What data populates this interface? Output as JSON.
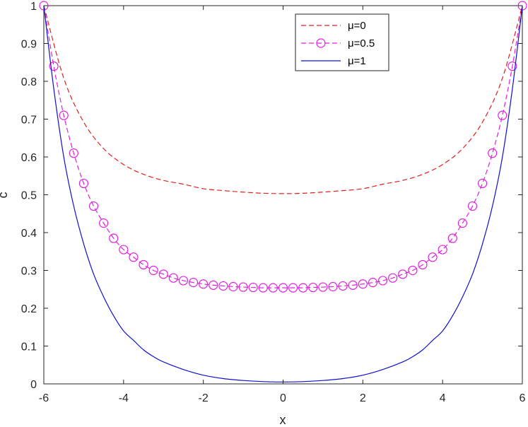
{
  "chart_data": {
    "type": "line",
    "xlabel": "x",
    "ylabel": "c",
    "xlim": [
      -6,
      6
    ],
    "ylim": [
      0,
      1
    ],
    "xticks": [
      -6,
      -4,
      -2,
      0,
      2,
      4,
      6
    ],
    "yticks": [
      0,
      0.1,
      0.2,
      0.3,
      0.4,
      0.5,
      0.6,
      0.7,
      0.8,
      0.9,
      1
    ],
    "grid": false,
    "legend_position": "top-right",
    "series": [
      {
        "name": "μ=0",
        "style": "dashed",
        "color": "#e02020",
        "marker": "none",
        "x": [
          -6,
          -5.5,
          -5,
          -4.5,
          -4,
          -3.5,
          -3,
          -2.5,
          -2,
          -1.5,
          -1,
          -0.5,
          0,
          0.5,
          1,
          1.5,
          2,
          2.5,
          3,
          3.5,
          4,
          4.5,
          5,
          5.5,
          6
        ],
        "y": [
          1,
          0.808,
          0.692,
          0.622,
          0.58,
          0.554,
          0.538,
          0.528,
          0.516,
          0.511,
          0.507,
          0.504,
          0.503,
          0.504,
          0.507,
          0.511,
          0.516,
          0.528,
          0.538,
          0.554,
          0.58,
          0.622,
          0.692,
          0.808,
          1
        ]
      },
      {
        "name": "μ=0.5",
        "style": "dashed",
        "color": "#e020e0",
        "marker": "circle",
        "x": [
          -6,
          -5.75,
          -5.5,
          -5.25,
          -5,
          -4.75,
          -4.5,
          -4.25,
          -4,
          -3.75,
          -3.5,
          -3.25,
          -3,
          -2.75,
          -2.5,
          -2.25,
          -2,
          -1.75,
          -1.5,
          -1.25,
          -1,
          -0.75,
          -0.5,
          -0.25,
          0,
          0.25,
          0.5,
          0.75,
          1,
          1.25,
          1.5,
          1.75,
          2,
          2.25,
          2.5,
          2.75,
          3,
          3.25,
          3.5,
          3.75,
          4,
          4.25,
          4.5,
          4.75,
          5,
          5.25,
          5.5,
          5.75,
          6
        ],
        "y": [
          1,
          0.84,
          0.71,
          0.61,
          0.53,
          0.47,
          0.425,
          0.385,
          0.355,
          0.335,
          0.315,
          0.3,
          0.29,
          0.28,
          0.273,
          0.268,
          0.264,
          0.261,
          0.259,
          0.257,
          0.256,
          0.255,
          0.254,
          0.254,
          0.254,
          0.254,
          0.254,
          0.255,
          0.256,
          0.257,
          0.259,
          0.261,
          0.264,
          0.268,
          0.273,
          0.28,
          0.29,
          0.3,
          0.315,
          0.335,
          0.355,
          0.385,
          0.425,
          0.47,
          0.53,
          0.61,
          0.71,
          0.84,
          1
        ]
      },
      {
        "name": "μ=1",
        "style": "solid",
        "color": "#1010d0",
        "marker": "none",
        "x": [
          -6,
          -5.75,
          -5.5,
          -5.25,
          -5,
          -4.75,
          -4.5,
          -4.25,
          -4,
          -3.75,
          -3.5,
          -3.25,
          -3,
          -2.5,
          -2,
          -1.5,
          -1,
          -0.5,
          0,
          0.5,
          1,
          1.5,
          2,
          2.5,
          3,
          3.25,
          3.5,
          3.75,
          4,
          4.25,
          4.5,
          4.75,
          5,
          5.25,
          5.5,
          5.75,
          6
        ],
        "y": [
          1,
          0.78,
          0.6,
          0.47,
          0.37,
          0.29,
          0.23,
          0.18,
          0.14,
          0.115,
          0.09,
          0.072,
          0.058,
          0.038,
          0.023,
          0.014,
          0.009,
          0.006,
          0.005,
          0.006,
          0.009,
          0.014,
          0.023,
          0.038,
          0.058,
          0.072,
          0.09,
          0.115,
          0.14,
          0.18,
          0.23,
          0.29,
          0.37,
          0.47,
          0.6,
          0.78,
          1
        ]
      }
    ]
  }
}
